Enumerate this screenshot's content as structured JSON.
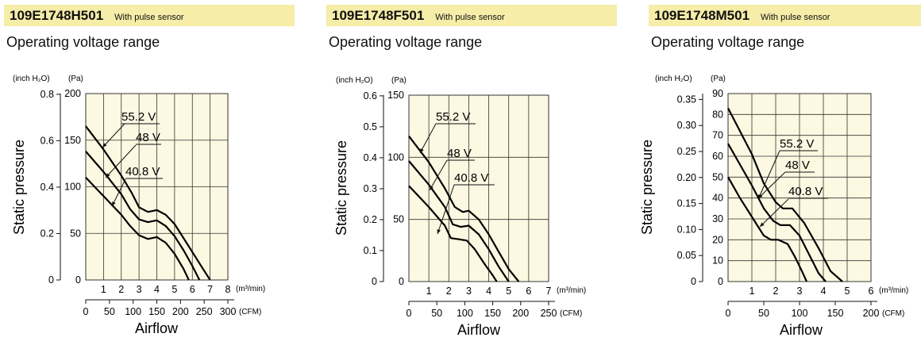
{
  "colors": {
    "header_bg": "#f5eda8",
    "plot_bg": "#fcf8e1",
    "grid": "#333333",
    "curve": "#000000"
  },
  "panels": [
    {
      "model": "109E1748H501",
      "sensor": "With pulse sensor",
      "subtitle": "Operating voltage range"
    },
    {
      "model": "109E1748F501",
      "sensor": "With pulse sensor",
      "subtitle": "Operating voltage range"
    },
    {
      "model": "109E1748M501",
      "sensor": "With pulse sensor",
      "subtitle": "Operating voltage range"
    }
  ],
  "chart_data": [
    {
      "type": "line",
      "ylabel": "Static pressure",
      "xlabel": "Airflow",
      "y_unit_inch": "(inch H₂O)",
      "y_unit_pa": "(Pa)",
      "x_unit_m3": "(m³/min)",
      "x_unit_cfm": "(CFM)",
      "xlim": [
        0,
        8
      ],
      "ylim": [
        0,
        200
      ],
      "x_ticks": [
        "1",
        "2",
        "3",
        "4",
        "5",
        "6",
        "7",
        "8"
      ],
      "cfm_ticks": [
        "0",
        "50",
        "100",
        "150",
        "200",
        "250",
        "300"
      ],
      "pa_ticks": [
        "0",
        "50",
        "100",
        "150",
        "200"
      ],
      "inch_ticks": [
        "0",
        "0.2",
        "0.4",
        "0.6",
        "0.8"
      ],
      "series": [
        {
          "name": "55.2 V",
          "x": [
            0,
            1,
            2,
            2.6,
            3.0,
            3.5,
            4.0,
            4.5,
            5.0,
            5.5,
            6.0,
            6.5,
            7.0
          ],
          "y": [
            165,
            140,
            112,
            93,
            78,
            73,
            75,
            70,
            60,
            45,
            30,
            15,
            0
          ]
        },
        {
          "name": "48 V",
          "x": [
            0,
            1,
            2,
            2.5,
            3.0,
            3.5,
            4.0,
            4.5,
            5.0,
            5.5,
            6.0,
            6.4
          ],
          "y": [
            138,
            116,
            92,
            76,
            65,
            62,
            64,
            58,
            47,
            32,
            15,
            0
          ]
        },
        {
          "name": "40.8 V",
          "x": [
            0,
            1,
            2,
            2.5,
            3.0,
            3.5,
            4.0,
            4.5,
            5.0,
            5.5,
            5.8
          ],
          "y": [
            110,
            90,
            70,
            58,
            48,
            44,
            46,
            40,
            28,
            12,
            0
          ]
        }
      ]
    },
    {
      "type": "line",
      "ylabel": "Static pressure",
      "xlabel": "Airflow",
      "y_unit_inch": "(inch H₂O)",
      "y_unit_pa": "(Pa)",
      "x_unit_m3": "(m³/min)",
      "x_unit_cfm": "(CFM)",
      "xlim": [
        0,
        7
      ],
      "ylim": [
        0,
        150
      ],
      "x_ticks": [
        "1",
        "2",
        "3",
        "4",
        "5",
        "6",
        "7"
      ],
      "cfm_ticks": [
        "0",
        "50",
        "100",
        "150",
        "200",
        "250"
      ],
      "pa_ticks": [
        "0",
        "50",
        "100",
        "150"
      ],
      "inch_ticks": [
        "0",
        "0.1",
        "0.2",
        "0.3",
        "0.4",
        "0.5",
        "0.6"
      ],
      "series": [
        {
          "name": "55.2 V",
          "x": [
            0,
            1,
            1.8,
            2.3,
            2.7,
            3.0,
            3.5,
            4.0,
            4.5,
            5.0,
            5.5
          ],
          "y": [
            117,
            96,
            75,
            60,
            56,
            57,
            50,
            38,
            24,
            10,
            0
          ]
        },
        {
          "name": "48 V",
          "x": [
            0,
            1,
            1.8,
            2.2,
            2.6,
            3.0,
            3.5,
            4.0,
            4.5,
            5.0
          ],
          "y": [
            97,
            78,
            60,
            46,
            44,
            45,
            38,
            26,
            12,
            0
          ]
        },
        {
          "name": "40.8 V",
          "x": [
            0,
            1,
            1.8,
            2.1,
            2.5,
            2.9,
            3.3,
            3.8,
            4.2,
            4.4
          ],
          "y": [
            77,
            60,
            45,
            35,
            34,
            33,
            26,
            14,
            5,
            0
          ]
        }
      ]
    },
    {
      "type": "line",
      "ylabel": "Static pressure",
      "xlabel": "Airflow",
      "y_unit_inch": "(inch H₂O)",
      "y_unit_pa": "(Pa)",
      "x_unit_m3": "(m³/min)",
      "x_unit_cfm": "(CFM)",
      "xlim": [
        0,
        6
      ],
      "ylim": [
        0,
        90
      ],
      "x_ticks": [
        "1",
        "2",
        "3",
        "4",
        "5",
        "6"
      ],
      "cfm_ticks": [
        "0",
        "50",
        "100",
        "150",
        "200"
      ],
      "pa_ticks": [
        "0",
        "10",
        "20",
        "30",
        "40",
        "50",
        "60",
        "70",
        "80",
        "90"
      ],
      "inch_ticks": [
        "0",
        "0.05",
        "0.10",
        "0.15",
        "0.20",
        "0.25",
        "0.30",
        "0.35"
      ],
      "series": [
        {
          "name": "55.2 V",
          "x": [
            0,
            0.5,
            1.0,
            1.5,
            2.0,
            2.3,
            2.7,
            3.2,
            3.8,
            4.3,
            4.8
          ],
          "y": [
            83,
            72,
            61,
            47,
            38,
            35,
            35,
            28,
            16,
            5,
            0
          ]
        },
        {
          "name": "48 V",
          "x": [
            0,
            0.5,
            1.0,
            1.5,
            1.9,
            2.2,
            2.6,
            3.0,
            3.4,
            3.8,
            4.1
          ],
          "y": [
            66,
            56,
            46,
            35,
            29,
            27,
            27,
            22,
            13,
            4,
            0
          ]
        },
        {
          "name": "40.8 V",
          "x": [
            0,
            0.5,
            1.0,
            1.5,
            1.8,
            2.1,
            2.5,
            2.8,
            3.1,
            3.3
          ],
          "y": [
            50,
            40,
            31,
            22,
            20,
            20,
            18,
            12,
            5,
            0
          ]
        }
      ]
    }
  ]
}
